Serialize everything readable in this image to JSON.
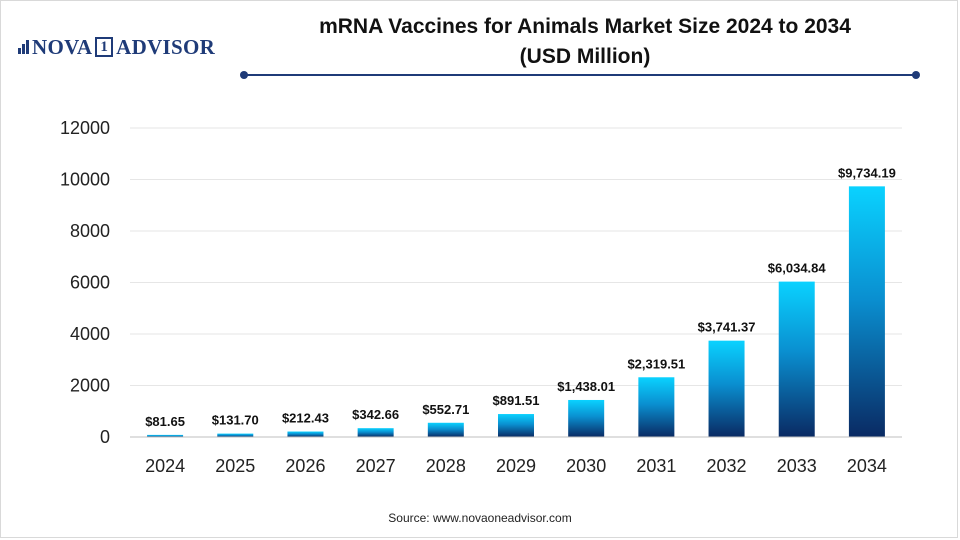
{
  "brand": {
    "logo_prefix": "NOVA",
    "logo_number": "1",
    "logo_suffix": "ADVISOR",
    "color": "#1f3b78"
  },
  "header": {
    "title_line1": "mRNA Vaccines for Animals Market Size 2024 to 2034",
    "title_line2": "(USD Million)"
  },
  "footer": {
    "source": "Source: www.novaoneadvisor.com"
  },
  "chart_data": {
    "type": "bar",
    "title": "mRNA Vaccines for Animals Market Size 2024 to 2034 (USD Million)",
    "xlabel": "",
    "ylabel": "",
    "categories": [
      "2024",
      "2025",
      "2026",
      "2027",
      "2028",
      "2029",
      "2030",
      "2031",
      "2032",
      "2033",
      "2034"
    ],
    "values": [
      81.65,
      131.7,
      212.43,
      342.66,
      552.71,
      891.51,
      1438.01,
      2319.51,
      3741.37,
      6034.84,
      9734.19
    ],
    "data_labels": [
      "$81.65",
      "$131.70",
      "$212.43",
      "$342.66",
      "$552.71",
      "$891.51",
      "$1,438.01",
      "$2,319.51",
      "$3,741.37",
      "$6,034.84",
      "$9,734.19"
    ],
    "ylim": [
      0,
      12000
    ],
    "yticks": [
      0,
      2000,
      4000,
      6000,
      8000,
      10000,
      12000
    ],
    "grid": true,
    "legend": "none",
    "colors": {
      "bar_top": "#0ad2ff",
      "bar_bottom": "#0a2a63",
      "grid": "#e6e6e6",
      "axis": "#bfbfbf"
    }
  }
}
